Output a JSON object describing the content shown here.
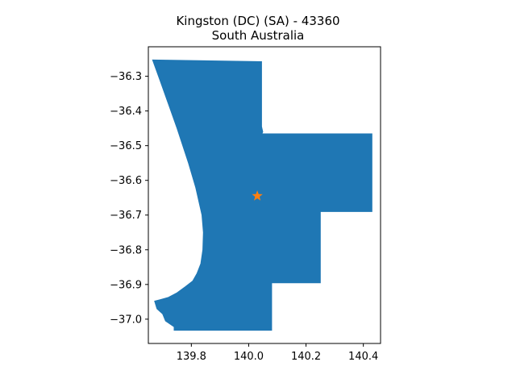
{
  "title": {
    "line1": "Kingston (DC) (SA) - 43360",
    "line2": "South Australia"
  },
  "chart_data": {
    "type": "map",
    "region_name": "Kingston (DC) (SA)",
    "region_code": "43360",
    "state": "South Australia",
    "fill_color": "#1f77b4",
    "marker_color": "#ff7f0e",
    "marker_symbol": "star",
    "marker": {
      "lon": 140.03,
      "lat": -36.645
    },
    "xlim": [
      139.65,
      140.46
    ],
    "ylim": [
      -37.07,
      -36.215
    ],
    "xticks": [
      {
        "value": 139.8,
        "label": "139.8"
      },
      {
        "value": 140.0,
        "label": "140.0"
      },
      {
        "value": 140.2,
        "label": "140.2"
      },
      {
        "value": 140.4,
        "label": "140.4"
      }
    ],
    "yticks": [
      {
        "value": -36.3,
        "label": "−36.3"
      },
      {
        "value": -36.4,
        "label": "−36.4"
      },
      {
        "value": -36.5,
        "label": "−36.5"
      },
      {
        "value": -36.6,
        "label": "−36.6"
      },
      {
        "value": -36.7,
        "label": "−36.7"
      },
      {
        "value": -36.8,
        "label": "−36.8"
      },
      {
        "value": -36.9,
        "label": "−36.9"
      },
      {
        "value": -37.0,
        "label": "−37.0"
      }
    ],
    "boundary": [
      [
        139.665,
        -36.253
      ],
      [
        140.045,
        -36.258
      ],
      [
        140.045,
        -36.445
      ],
      [
        140.049,
        -36.46
      ],
      [
        140.046,
        -36.466
      ],
      [
        140.43,
        -36.466
      ],
      [
        140.43,
        -36.69
      ],
      [
        140.25,
        -36.69
      ],
      [
        140.25,
        -36.895
      ],
      [
        140.08,
        -36.895
      ],
      [
        140.08,
        -37.032
      ],
      [
        139.74,
        -37.032
      ],
      [
        139.74,
        -37.022
      ],
      [
        139.71,
        -37.005
      ],
      [
        139.7,
        -36.985
      ],
      [
        139.68,
        -36.97
      ],
      [
        139.672,
        -36.948
      ],
      [
        139.69,
        -36.944
      ],
      [
        139.72,
        -36.937
      ],
      [
        139.75,
        -36.924
      ],
      [
        139.78,
        -36.906
      ],
      [
        139.805,
        -36.89
      ],
      [
        139.82,
        -36.868
      ],
      [
        139.833,
        -36.84
      ],
      [
        139.84,
        -36.8
      ],
      [
        139.842,
        -36.75
      ],
      [
        139.837,
        -36.7
      ],
      [
        139.815,
        -36.62
      ],
      [
        139.79,
        -36.55
      ],
      [
        139.75,
        -36.45
      ],
      [
        139.72,
        -36.38
      ],
      [
        139.69,
        -36.31
      ]
    ]
  }
}
